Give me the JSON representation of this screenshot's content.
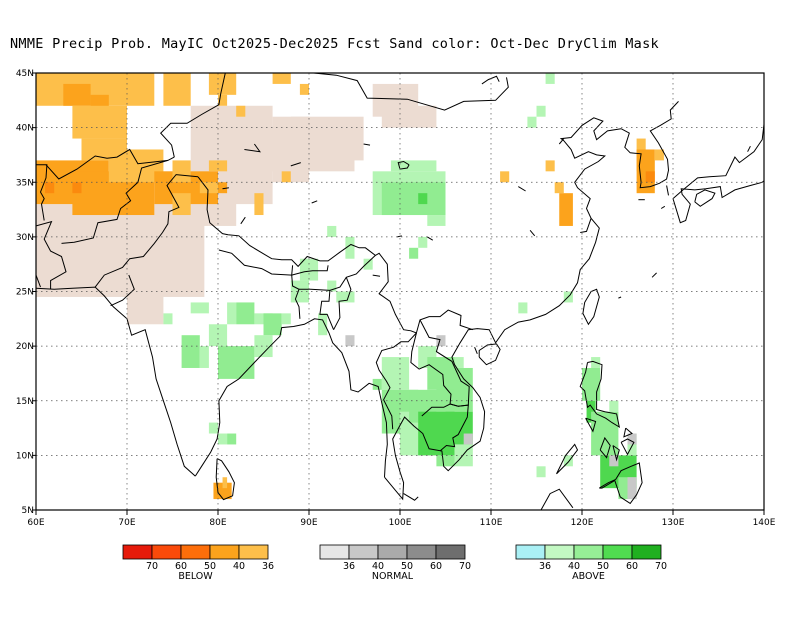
{
  "title": "NMME Precip Prob. MayIC  Oct2025-Dec2025 Fcst  Sand color: Oct-Dec DryClim Mask",
  "map": {
    "lon_range": [
      60,
      140
    ],
    "lat_range": [
      5,
      45
    ],
    "x_ticks": [
      "60E",
      "70E",
      "80E",
      "90E",
      "100E",
      "110E",
      "120E",
      "130E",
      "140E"
    ],
    "y_ticks": [
      "5N",
      "10N",
      "15N",
      "20N",
      "25N",
      "30N",
      "35N",
      "40N",
      "45N"
    ],
    "grid": "dotted",
    "colors": {
      "sand": "#ecdcd2",
      "below_36": "#fdbf4a",
      "below_40": "#fca31c",
      "below_50": "#fb8a0e",
      "above_36": "#b4f5b4",
      "above_40": "#91ec91",
      "above_50": "#4fd84f",
      "normal_36": "#c8c8c8"
    }
  },
  "legend": {
    "below": {
      "label": "BELOW",
      "ticks": [
        "70",
        "60",
        "50",
        "40",
        "36"
      ],
      "colors": [
        "#e61a0a",
        "#fa4a0a",
        "#fd6e0a",
        "#fca31c",
        "#fdbf4a"
      ]
    },
    "normal": {
      "label": "NORMAL",
      "ticks": [
        "36",
        "40",
        "50",
        "60",
        "70"
      ],
      "colors": [
        "#e6e6e6",
        "#c8c8c8",
        "#aaaaaa",
        "#8c8c8c",
        "#6e6e6e"
      ]
    },
    "above": {
      "label": "ABOVE",
      "ticks": [
        "36",
        "40",
        "50",
        "60",
        "70"
      ],
      "colors": [
        "#aaf0f5",
        "#c3f8c3",
        "#96ee96",
        "#50dc50",
        "#20b020"
      ]
    }
  }
}
